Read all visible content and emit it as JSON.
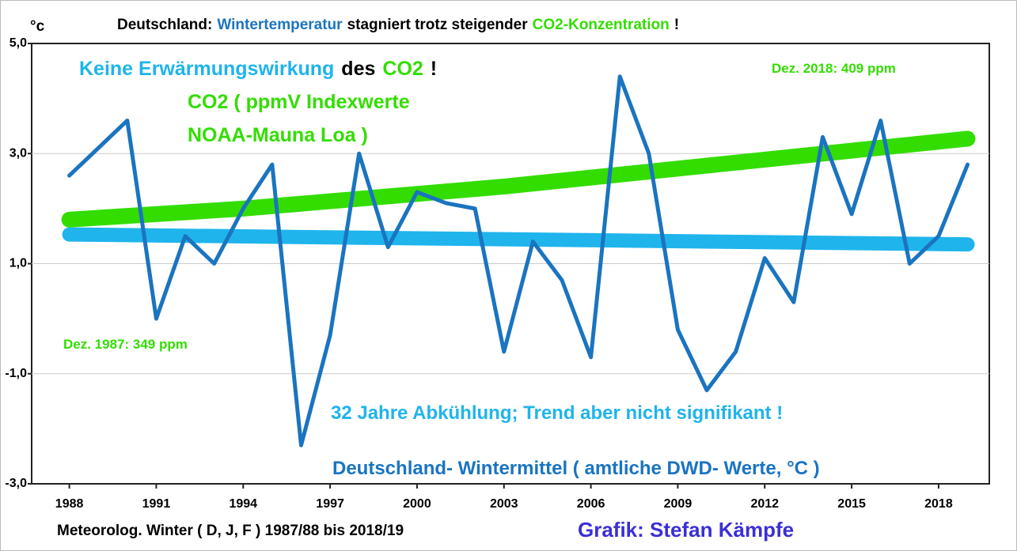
{
  "chart_data": {
    "type": "line",
    "title_parts": [
      {
        "text": "Deutschland:",
        "color": "#000000"
      },
      {
        "text": "Wintertemperatur",
        "color": "#1a74c0"
      },
      {
        "text": "stagniert trotz steigender",
        "color": "#000000"
      },
      {
        "text": "CO2-Konzentration",
        "color": "#33dd00"
      },
      {
        "text": "!",
        "color": "#000000"
      }
    ],
    "y_unit": "°c",
    "x_label": "Meteorolog. Winter ( D, J, F ) 1987/88 bis 2018/19",
    "credit": "Grafik: Stefan Kämpfe",
    "credit_color": "#3a2fd6",
    "xlim": [
      1986.7,
      2019.75
    ],
    "xticks": [
      1988,
      1991,
      1994,
      1997,
      2000,
      2003,
      2006,
      2009,
      2012,
      2015,
      2018
    ],
    "ylim": [
      -3,
      5
    ],
    "yticks": [
      {
        "value": -3,
        "label": "-3,0"
      },
      {
        "value": -1,
        "label": "-1,0"
      },
      {
        "value": 1,
        "label": "1,0"
      },
      {
        "value": 3,
        "label": "3,0"
      },
      {
        "value": 5,
        "label": "5,0"
      }
    ],
    "grid": true,
    "series": [
      {
        "name": "CO2",
        "color": "#33dd00",
        "width": 20,
        "x": [
          1988,
          1994,
          2003,
          2019
        ],
        "values": [
          1.8,
          2.0,
          2.4,
          3.27
        ]
      },
      {
        "name": "Trend",
        "color": "#1fb4ec",
        "width": 18,
        "x": [
          1988,
          2019
        ],
        "values": [
          1.53,
          1.35
        ]
      },
      {
        "name": "Wintermittel",
        "color": "#1a74c0",
        "width": 5,
        "x": [
          1988,
          1989,
          1990,
          1991,
          1992,
          1993,
          1994,
          1995,
          1996,
          1997,
          1998,
          1999,
          2000,
          2001,
          2002,
          2003,
          2004,
          2005,
          2006,
          2007,
          2008,
          2009,
          2010,
          2011,
          2012,
          2013,
          2014,
          2015,
          2016,
          2017,
          2018,
          2019
        ],
        "values": [
          2.6,
          3.1,
          3.6,
          0.0,
          1.5,
          1.0,
          2.0,
          2.8,
          -2.3,
          -0.3,
          3.0,
          1.3,
          2.3,
          2.1,
          2.0,
          -0.6,
          1.4,
          0.7,
          -0.7,
          4.4,
          3.0,
          -0.2,
          -1.3,
          -0.6,
          1.1,
          0.3,
          3.3,
          1.9,
          3.6,
          1.0,
          1.5,
          2.8
        ]
      }
    ],
    "annotations": [
      {
        "parts": [
          {
            "text": "Keine Erwärmungswirkung",
            "color": "#1fb4ec"
          },
          {
            "text": "des",
            "color": "#000000"
          },
          {
            "text": "CO2",
            "color": "#33dd00"
          },
          {
            "text": "!",
            "color": "#000000"
          }
        ]
      },
      {
        "parts": [
          {
            "text": "CO2 ( ppmV Indexwerte",
            "color": "#33dd00"
          }
        ]
      },
      {
        "parts": [
          {
            "text": "NOAA-Mauna Loa )",
            "color": "#33dd00"
          }
        ]
      },
      {
        "parts": [
          {
            "text": "Dez. 2018: 409 ppm",
            "color": "#33dd00"
          }
        ]
      },
      {
        "parts": [
          {
            "text": "Dez. 1987: 349 ppm",
            "color": "#33dd00"
          }
        ]
      },
      {
        "parts": [
          {
            "text": "32 Jahre Abkühlung; Trend aber nicht signifikant !",
            "color": "#1fb4ec"
          }
        ]
      },
      {
        "parts": [
          {
            "text": "Deutschland- Wintermittel ( amtliche DWD- Werte, °C )",
            "color": "#1a74c0"
          }
        ]
      }
    ]
  }
}
